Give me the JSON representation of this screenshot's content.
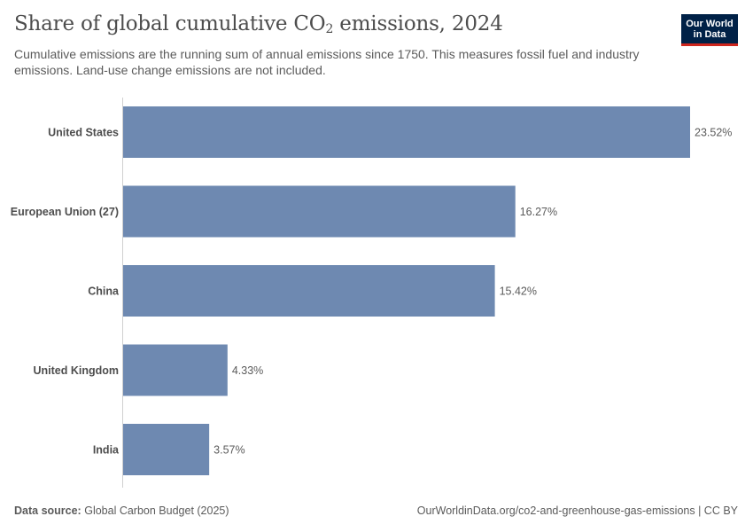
{
  "header": {
    "title_main": "Share of global cumulative CO",
    "title_sub": "2",
    "title_tail": " emissions, 2024",
    "subtitle": "Cumulative emissions are the running sum of annual emissions since 1750. This measures fossil fuel and industry emissions. Land-use change emissions are not included."
  },
  "logo": {
    "line1": "Our World",
    "line2": "in Data"
  },
  "footer": {
    "source_label": "Data source:",
    "source_value": "Global Carbon Budget (2025)",
    "url": "OurWorldinData.org/co2-and-greenhouse-gas-emissions | CC BY"
  },
  "colors": {
    "bar": "#6e89b1",
    "axis": "#d0d0d0",
    "label": "#4d4d4d",
    "value": "#5b5b5b"
  },
  "chart_data": {
    "type": "bar",
    "orientation": "horizontal",
    "title": "Share of global cumulative CO2 emissions, 2024",
    "categories": [
      "United States",
      "European Union (27)",
      "China",
      "United Kingdom",
      "India"
    ],
    "values": [
      23.52,
      16.27,
      15.42,
      4.33,
      3.57
    ],
    "value_labels": [
      "23.52%",
      "16.27%",
      "15.42%",
      "4.33%",
      "3.57%"
    ],
    "unit": "%",
    "xlim": [
      0,
      23.52
    ],
    "grid": false
  }
}
